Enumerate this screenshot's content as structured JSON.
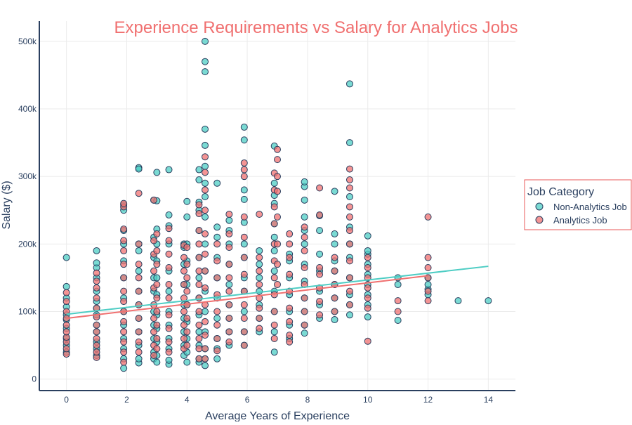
{
  "chart_data": {
    "type": "scatter",
    "title": "Experience Requirements vs Salary for Analytics Jobs",
    "xlabel": "Average Years of Experience",
    "ylabel": "Salary ($)",
    "xlim": [
      -0.9,
      14.9
    ],
    "ylim": [
      -17000,
      530000
    ],
    "x_ticks": [
      0,
      2,
      4,
      6,
      8,
      10,
      12,
      14
    ],
    "x_tick_labels": [
      "0",
      "2",
      "4",
      "6",
      "8",
      "10",
      "12",
      "14"
    ],
    "y_ticks": [
      0,
      100000,
      200000,
      300000,
      400000,
      500000
    ],
    "y_tick_labels": [
      "0",
      "100k",
      "200k",
      "300k",
      "400k",
      "500k"
    ],
    "grid": true,
    "legend": {
      "title": "Job Category",
      "placement": "right",
      "border_color": "#e85a5a"
    },
    "series": [
      {
        "name": "Non-Analytics Job",
        "color": "#4ecdc4",
        "clusters": [
          {
            "x": 0,
            "y": [
              40000,
              50000,
              60000,
              75000,
              88000,
              95000,
              107000,
              120000,
              137000,
              180000
            ]
          },
          {
            "x": 1,
            "y": [
              35000,
              45000,
              55000,
              70000,
              80000,
              95000,
              105000,
              115000,
              130000,
              150000,
              165000,
              172000,
              190000
            ]
          },
          {
            "x": 1.9,
            "y": [
              16000,
              30000,
              45000,
              60000,
              80000,
              100000,
              120000,
              150000,
              175000,
              200000,
              220000,
              250000,
              258000
            ]
          },
          {
            "x": 2.4,
            "y": [
              24000,
              30000,
              50000,
              70000,
              90000,
              110000,
              130000,
              160000,
              190000,
              200000,
              313000,
              311000
            ]
          },
          {
            "x": 2.9,
            "y": [
              30000,
              40000,
              60000,
              80000,
              100000,
              130000,
              150000,
              180000,
              210000,
              265000
            ]
          },
          {
            "x": 3.0,
            "y": [
              25000,
              35000,
              55000,
              75000,
              95000,
              125000,
              150000,
              175000,
              200000,
              222000,
              264000,
              306000
            ]
          },
          {
            "x": 3.4,
            "y": [
              22000,
              28000,
              45000,
              60000,
              80000,
              100000,
              130000,
              160000,
              200000,
              227000,
              243000,
              310000
            ]
          },
          {
            "x": 3.9,
            "y": [
              35000,
              50000,
              70000,
              90000,
              110000,
              140000,
              170000,
              195000,
              200000
            ]
          },
          {
            "x": 4.0,
            "y": [
              25000,
              40000,
              60000,
              85000,
              110000,
              140000,
              175000,
              200000,
              240000,
              263000
            ]
          },
          {
            "x": 4.4,
            "y": [
              25000,
              30000,
              50000,
              70000,
              95000,
              120000,
              150000,
              180000,
              220000,
              250000,
              262000,
              295000,
              310000
            ]
          },
          {
            "x": 4.6,
            "y": [
              20000,
              30000,
              45000,
              70000,
              100000,
              130000,
              160000,
              200000,
              240000,
              270000,
              290000,
              315000,
              346000,
              370000,
              455000,
              470000,
              500000
            ]
          },
          {
            "x": 5.0,
            "y": [
              30000,
              45000,
              60000,
              90000,
              120000,
              150000,
              180000,
              210000,
              225000,
              290000
            ]
          },
          {
            "x": 5.4,
            "y": [
              50000,
              70000,
              90000,
              110000,
              140000,
              170000,
              200000,
              220000,
              235000
            ]
          },
          {
            "x": 5.9,
            "y": [
              50000,
              70000,
              100000,
              130000,
              150000,
              180000,
              200000,
              232000,
              266000,
              280000,
              354000,
              373000
            ]
          },
          {
            "x": 6.4,
            "y": [
              70000,
              90000,
              110000,
              130000,
              150000,
              170000,
              190000
            ]
          },
          {
            "x": 6.9,
            "y": [
              40000,
              70000,
              100000,
              130000,
              160000,
              190000,
              210000,
              230000,
              260000,
              272000,
              290000,
              345000
            ]
          },
          {
            "x": 7.4,
            "y": [
              60000,
              80000,
              100000,
              125000,
              150000,
              175000,
              185000
            ]
          },
          {
            "x": 7.9,
            "y": [
              68000,
              80000,
              100000,
              120000,
              145000,
              170000,
              200000,
              220000,
              240000,
              265000,
              285000,
              292000
            ]
          },
          {
            "x": 8.4,
            "y": [
              90000,
              110000,
              130000,
              160000,
              185000,
              220000,
              242000
            ]
          },
          {
            "x": 8.9,
            "y": [
              88000,
              100000,
              120000,
              140000,
              160000,
              175000,
              200000,
              215000,
              278000
            ]
          },
          {
            "x": 9.4,
            "y": [
              95000,
              110000,
              125000,
              150000,
              180000,
              200000,
              225000,
              270000,
              350000,
              437000
            ]
          },
          {
            "x": 10.0,
            "y": [
              92000,
              110000,
              125000,
              140000,
              155000,
              170000,
              185000,
              190000,
              212000
            ]
          },
          {
            "x": 11.0,
            "y": [
              87000,
              140000,
              150000
            ]
          },
          {
            "x": 12.0,
            "y": [
              125000,
              133000,
              140000,
              150000
            ]
          },
          {
            "x": 13.0,
            "y": [
              116000
            ]
          },
          {
            "x": 14.0,
            "y": [
              116000
            ]
          }
        ],
        "trend": {
          "x": [
            0,
            14
          ],
          "y": [
            96000,
            167000
          ]
        }
      },
      {
        "name": "Analytics Job",
        "color": "#f07070",
        "clusters": [
          {
            "x": 0,
            "y": [
              37000,
              45000,
              55000,
              62000,
              70000,
              80000,
              90000,
              100000,
              115000,
              128000
            ]
          },
          {
            "x": 1,
            "y": [
              32000,
              40000,
              50000,
              60000,
              70000,
              80000,
              92000,
              105000,
              120000,
              135000,
              145000,
              157000
            ]
          },
          {
            "x": 1.9,
            "y": [
              25000,
              40000,
              55000,
              70000,
              85000,
              100000,
              115000,
              130000,
              150000,
              170000,
              190000,
              205000,
              222000,
              255000,
              260000
            ]
          },
          {
            "x": 2.4,
            "y": [
              40000,
              55000,
              70000,
              90000,
              110000,
              130000,
              150000,
              170000,
              200000,
              275000
            ]
          },
          {
            "x": 2.9,
            "y": [
              35000,
              50000,
              70000,
              90000,
              110000,
              135000,
              160000,
              185000,
              205000,
              265000
            ]
          },
          {
            "x": 3.0,
            "y": [
              45000,
              60000,
              80000,
              100000,
              120000,
              140000,
              170000,
              190000,
              215000
            ]
          },
          {
            "x": 3.4,
            "y": [
              40000,
              55000,
              75000,
              95000,
              120000,
              140000,
              165000,
              185000,
              205000,
              223000
            ]
          },
          {
            "x": 3.9,
            "y": [
              45000,
              60000,
              80000,
              100000,
              120000,
              140000,
              160000,
              180000,
              198000
            ]
          },
          {
            "x": 4.0,
            "y": [
              50000,
              70000,
              90000,
              110000,
              130000,
              150000,
              170000,
              195000
            ]
          },
          {
            "x": 4.4,
            "y": [
              30000,
              45000,
              60000,
              80000,
              100000,
              120000,
              140000,
              160000,
              180000,
              200000,
              220000,
              245000,
              258000
            ]
          },
          {
            "x": 4.6,
            "y": [
              30000,
              45000,
              65000,
              85000,
              110000,
              135000,
              160000,
              185000,
              215000,
              250000,
              280000,
              306000,
              329000
            ]
          },
          {
            "x": 5.0,
            "y": [
              42000,
              60000,
              80000,
              100000,
              125000,
              150000,
              175000,
              200000
            ]
          },
          {
            "x": 5.4,
            "y": [
              55000,
              70000,
              90000,
              110000,
              130000,
              150000,
              170000,
              195000,
              215000,
              244000
            ]
          },
          {
            "x": 5.9,
            "y": [
              50000,
              70000,
              90000,
              110000,
              130000,
              155000,
              180000,
              210000,
              240000,
              300000,
              310000,
              320000
            ]
          },
          {
            "x": 6.4,
            "y": [
              75000,
              90000,
              105000,
              120000,
              140000,
              160000,
              180000,
              244000
            ]
          },
          {
            "x": 6.9,
            "y": [
              60000,
              80000,
              100000,
              125000,
              150000,
              175000,
              200000,
              230000,
              255000,
              280000,
              305000
            ]
          },
          {
            "x": 7.0,
            "y": [
              140000,
              170000,
              200000,
              240000,
              278000,
              300000,
              325000,
              340000
            ]
          },
          {
            "x": 7.4,
            "y": [
              55000,
              65000,
              85000,
              105000,
              130000,
              155000,
              180000,
              200000,
              215000
            ]
          },
          {
            "x": 7.9,
            "y": [
              80000,
              100000,
              120000,
              140000,
              165000,
              190000,
              210000,
              225000
            ]
          },
          {
            "x": 8.4,
            "y": [
              95000,
              115000,
              135000,
              155000,
              165000,
              243000,
              283000
            ]
          },
          {
            "x": 8.9,
            "y": [
              100000,
              120000,
              140000,
              160000,
              180000
            ]
          },
          {
            "x": 9.4,
            "y": [
              110000,
              130000,
              150000,
              175000,
              200000,
              220000,
              240000,
              255000,
              283000,
              295000,
              311000
            ]
          },
          {
            "x": 10.0,
            "y": [
              56000,
              105000,
              120000,
              135000,
              150000,
              165000,
              180000
            ]
          },
          {
            "x": 11.0,
            "y": [
              100000,
              116000
            ]
          },
          {
            "x": 12.0,
            "y": [
              116000,
              130000,
              150000,
              165000,
              180000,
              240000
            ]
          }
        ],
        "trend": {
          "x": [
            0,
            12
          ],
          "y": [
            90000,
            153000
          ]
        }
      }
    ]
  }
}
